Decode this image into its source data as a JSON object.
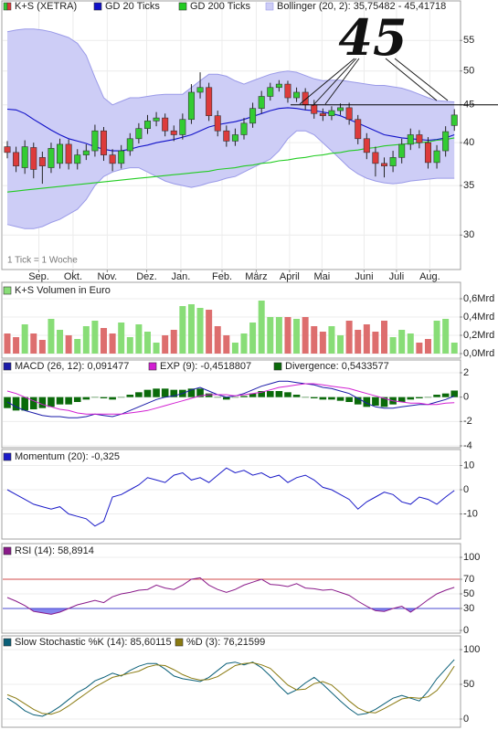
{
  "chart_data": [
    {
      "type": "candlestick",
      "name": "K+S (XETRA)",
      "up_color": "#33cc33",
      "down_color": "#dd3b3b",
      "log": true,
      "ylim": [
        27.1,
        59.6
      ],
      "yticks": [
        30,
        35,
        40,
        45,
        50,
        55
      ],
      "grid": true,
      "xlim": [
        -0.52,
        51.6
      ],
      "xticks": [
        {
          "value": 3.6,
          "label": "Sep."
        },
        {
          "value": 7.5,
          "label": "Okt."
        },
        {
          "value": 11.4,
          "label": "Nov."
        },
        {
          "value": 15.9,
          "label": "Dez."
        },
        {
          "value": 19.8,
          "label": "Jan."
        },
        {
          "value": 24.5,
          "label": "Feb."
        },
        {
          "value": 28.4,
          "label": "März"
        },
        {
          "value": 32.2,
          "label": "April"
        },
        {
          "value": 35.9,
          "label": "Mai"
        },
        {
          "value": 40.7,
          "label": "Juni"
        },
        {
          "value": 44.4,
          "label": "Juli"
        },
        {
          "value": 48.2,
          "label": "Aug."
        }
      ],
      "open": [
        39.5,
        38.8,
        37.0,
        39.4,
        38.2,
        37.0,
        37.5,
        39.8,
        37.5,
        38.5,
        39.0,
        41.5,
        38.5,
        37.5,
        39.0,
        40.5,
        41.8,
        42.8,
        43.2,
        41.5,
        41.0,
        43.0,
        46.8,
        47.5,
        43.5,
        41.5,
        40.2,
        41.0,
        42.5,
        44.5,
        46.2,
        47.5,
        48.0,
        46.0,
        46.8,
        45.0,
        43.8,
        43.5,
        44.2,
        44.6,
        43.0,
        40.5,
        38.8,
        37.5,
        37.2,
        38.2,
        39.8,
        41.0,
        40.0,
        37.6,
        39.0,
        42.2
      ],
      "high": [
        40.2,
        39.5,
        40.3,
        40.0,
        38.9,
        40.0,
        40.5,
        40.4,
        39.2,
        39.8,
        42.3,
        42.0,
        39.2,
        39.7,
        41.2,
        42.5,
        43.6,
        44.0,
        43.8,
        42.2,
        43.8,
        48.0,
        49.8,
        48.2,
        44.2,
        42.2,
        41.8,
        43.2,
        45.3,
        47.0,
        48.2,
        48.6,
        48.5,
        47.5,
        47.4,
        45.7,
        44.5,
        44.8,
        45.2,
        45.3,
        43.6,
        41.2,
        39.5,
        38.2,
        39.0,
        40.5,
        41.8,
        41.6,
        40.7,
        39.7,
        42.1,
        44.4
      ],
      "low": [
        38.1,
        36.5,
        36.3,
        35.8,
        35.2,
        36.4,
        36.9,
        36.8,
        36.8,
        37.9,
        38.3,
        37.8,
        36.6,
        36.9,
        38.4,
        39.9,
        41.1,
        42.1,
        40.8,
        40.2,
        40.4,
        42.4,
        45.9,
        42.8,
        40.8,
        39.5,
        39.6,
        40.4,
        41.9,
        43.8,
        45.6,
        46.9,
        45.3,
        45.4,
        44.3,
        43.1,
        42.8,
        42.9,
        43.6,
        42.3,
        39.8,
        38.0,
        36.0,
        35.9,
        36.5,
        37.5,
        39.1,
        39.3,
        36.9,
        36.9,
        38.3,
        41.5
      ],
      "close": [
        38.8,
        37.2,
        39.5,
        36.8,
        37.2,
        39.3,
        39.8,
        37.5,
        38.5,
        39.0,
        41.5,
        38.5,
        37.5,
        39.0,
        40.5,
        41.8,
        42.8,
        43.2,
        41.5,
        41.0,
        43.0,
        46.8,
        47.5,
        43.5,
        41.5,
        40.2,
        41.0,
        42.5,
        44.5,
        46.2,
        47.5,
        48.0,
        46.0,
        46.8,
        45.0,
        43.8,
        43.5,
        44.2,
        44.6,
        43.0,
        40.5,
        38.8,
        37.5,
        37.2,
        38.2,
        39.8,
        41.0,
        40.0,
        37.6,
        39.0,
        41.4,
        43.6
      ],
      "series": [
        {
          "name": "GD 20 Ticks",
          "color": "#1010c8",
          "values": [
            44.4,
            44.3,
            43.8,
            43,
            42.3,
            41.6,
            41,
            40.5,
            40.2,
            39.9,
            39.5,
            39.2,
            39,
            39,
            39.2,
            39.5,
            39.7,
            40,
            40.2,
            40.4,
            40.7,
            41,
            41.5,
            42,
            42.3,
            42.5,
            42.7,
            43,
            43.4,
            43.8,
            44.2,
            44.5,
            44.6,
            44.5,
            44.3,
            44.2,
            44,
            43.8,
            43.5,
            43,
            42.5,
            42,
            41.5,
            41,
            40.8,
            40.6,
            40.5,
            40.4,
            40.3,
            40.4,
            40.6,
            41
          ]
        },
        {
          "name": "GD 200 Ticks",
          "color": "#22cc22",
          "values": [
            34.3,
            34.4,
            34.5,
            34.6,
            34.7,
            34.8,
            34.9,
            35.0,
            35.1,
            35.2,
            35.3,
            35.4,
            35.5,
            35.6,
            35.7,
            35.8,
            35.9,
            36.0,
            36.1,
            36.2,
            36.3,
            36.4,
            36.5,
            36.6,
            36.8,
            36.9,
            37.0,
            37.2,
            37.3,
            37.5,
            37.6,
            37.8,
            37.9,
            38.1,
            38.2,
            38.4,
            38.5,
            38.7,
            38.8,
            39.0,
            39.1,
            39.3,
            39.4,
            39.6,
            39.7,
            39.8,
            39.9,
            40.0,
            40.1,
            40.3,
            40.4,
            40.6
          ]
        }
      ],
      "band": {
        "name": "Bollinger (20, 2): 35,75482 - 45,41718",
        "color": "#9a9ae8",
        "fill": "#cdcdf6",
        "upper": [
          56.5,
          56.8,
          57,
          57,
          56.8,
          56.5,
          56,
          55.5,
          54.5,
          52.5,
          49,
          46,
          45,
          45.5,
          46,
          46,
          46.2,
          46.4,
          46.5,
          46.5,
          46.5,
          47.5,
          48.5,
          49.5,
          49.5,
          49.2,
          48.5,
          48,
          48.5,
          49,
          49.5,
          49.8,
          50,
          49.8,
          49.3,
          48.8,
          48.5,
          48.6,
          48.6,
          48.4,
          48.2,
          48,
          47.8,
          47.8,
          47.6,
          47.4,
          47,
          46.5,
          46,
          45.6,
          45.5,
          45.4
        ],
        "lower": [
          31,
          30.8,
          30.6,
          30.6,
          30.8,
          31.2,
          31.5,
          32,
          32.5,
          33.5,
          35,
          36,
          36.5,
          36.8,
          37,
          37,
          36.5,
          36,
          35.5,
          35.2,
          35,
          34.8,
          35,
          35.3,
          35.5,
          35.8,
          36,
          36.5,
          37,
          37.5,
          38,
          39,
          40.5,
          41.5,
          41.5,
          41,
          40,
          39,
          38,
          37,
          36.3,
          35.8,
          35.5,
          35.3,
          35.2,
          35.3,
          35.5,
          35.6,
          35.7,
          35.8,
          35.8,
          35.8
        ]
      },
      "hline": 45,
      "annotation": "45",
      "note": "1 Tick = 1 Woche"
    },
    {
      "type": "volume",
      "ylim": [
        0,
        0.62
      ],
      "grid": true,
      "yticks": [
        {
          "value": 0.6,
          "label": "0,6Mrd"
        },
        {
          "value": 0.4,
          "label": "0,4Mrd"
        },
        {
          "value": 0.2,
          "label": "0,2Mrd"
        },
        {
          "value": 0.0,
          "label": "0,0Mrd"
        }
      ],
      "series": [
        {
          "name": "K+S Volumen in Euro",
          "color": "#88dd77",
          "down_color": "#dd6e6e",
          "values": [
            0.22,
            0.18,
            0.32,
            0.22,
            0.15,
            0.38,
            0.26,
            0.2,
            0.16,
            0.3,
            0.36,
            0.28,
            0.22,
            0.34,
            0.18,
            0.32,
            0.24,
            0.12,
            0.2,
            0.26,
            0.52,
            0.54,
            0.5,
            0.48,
            0.3,
            0.2,
            0.12,
            0.22,
            0.34,
            0.58,
            0.4,
            0.4,
            0.4,
            0.38,
            0.4,
            0.3,
            0.24,
            0.3,
            0.2,
            0.36,
            0.26,
            0.32,
            0.24,
            0.36,
            0.18,
            0.26,
            0.22,
            0.12,
            0.16,
            0.36,
            0.38,
            0.12
          ]
        }
      ]
    },
    {
      "type": "line",
      "ylim": [
        -4,
        2.3
      ],
      "yticks": [
        2,
        0,
        -2,
        -4
      ],
      "grid": true,
      "series": [
        {
          "name": "MACD (26, 12): 0,091477",
          "color": "#1a1aa8",
          "values": [
            -0.4,
            -0.8,
            -1.1,
            -1.3,
            -1.5,
            -1.6,
            -1.6,
            -1.7,
            -1.7,
            -1.6,
            -1.4,
            -1.5,
            -1.6,
            -1.4,
            -1.1,
            -0.8,
            -0.5,
            -0.2,
            0.0,
            0.1,
            0.3,
            0.6,
            0.8,
            0.5,
            0.2,
            0.0,
            0.1,
            0.3,
            0.6,
            0.9,
            1.1,
            1.3,
            1.3,
            1.2,
            1.1,
            1.0,
            0.8,
            0.7,
            0.5,
            0.3,
            -0.1,
            -0.5,
            -0.8,
            -0.9,
            -0.9,
            -0.8,
            -0.7,
            -0.6,
            -0.6,
            -0.4,
            -0.2,
            0.09
          ]
        },
        {
          "name": "EXP (9): -0,4518807",
          "color": "#d21fd2",
          "values": [
            0.5,
            0.3,
            0.0,
            -0.3,
            -0.6,
            -0.8,
            -1.0,
            -1.1,
            -1.3,
            -1.4,
            -1.4,
            -1.4,
            -1.4,
            -1.4,
            -1.3,
            -1.2,
            -1.1,
            -0.9,
            -0.7,
            -0.5,
            -0.3,
            -0.1,
            0.1,
            0.2,
            0.2,
            0.2,
            0.1,
            0.2,
            0.3,
            0.4,
            0.6,
            0.8,
            0.9,
            1.0,
            1.1,
            1.1,
            1.0,
            0.9,
            0.8,
            0.7,
            0.5,
            0.3,
            0.1,
            -0.1,
            -0.3,
            -0.4,
            -0.5,
            -0.5,
            -0.6,
            -0.6,
            -0.5,
            -0.45
          ]
        },
        {
          "name": "Divergence: 0,5433577",
          "color": "#0a6a0a",
          "kind": "bar",
          "values": [
            -0.9,
            -1.1,
            -1.1,
            -1.0,
            -0.9,
            -0.8,
            -0.6,
            -0.6,
            -0.4,
            -0.2,
            0,
            -0.1,
            -0.2,
            0,
            0.2,
            0.4,
            0.6,
            0.7,
            0.7,
            0.6,
            0.6,
            0.7,
            0.7,
            0.3,
            0,
            -0.2,
            0,
            0.1,
            0.3,
            0.5,
            0.5,
            0.5,
            0.4,
            0.2,
            0,
            -0.1,
            -0.2,
            -0.2,
            -0.3,
            -0.4,
            -0.6,
            -0.8,
            -0.7,
            -0.8,
            -0.6,
            -0.4,
            -0.2,
            -0.1,
            0,
            0.2,
            0.3,
            0.54
          ]
        }
      ]
    },
    {
      "type": "line",
      "ylim": [
        -19.6,
        11.7
      ],
      "yticks": [
        10,
        0,
        -10
      ],
      "grid": true,
      "series": [
        {
          "name": "Momentum (20): -0,325",
          "color": "#1a1ac8",
          "values": [
            0,
            -2,
            -4,
            -6,
            -7,
            -8,
            -7,
            -10,
            -11,
            -12,
            -15,
            -13,
            -3,
            -2,
            0,
            2,
            5,
            4,
            3,
            6,
            7,
            4,
            5,
            3,
            6,
            9,
            7,
            8,
            6,
            7,
            5,
            6,
            3,
            5,
            6,
            4,
            1,
            0,
            -2,
            -4,
            -8,
            -5,
            -3,
            -1,
            -2,
            -5,
            -6,
            -3,
            -4,
            -6,
            -3,
            -0.325
          ]
        }
      ]
    },
    {
      "type": "line",
      "ylim": [
        0,
        100
      ],
      "yticks": [
        100,
        70,
        50,
        30,
        0
      ],
      "grid": true,
      "levels": [
        {
          "value": 70,
          "color": "#d04848"
        },
        {
          "value": 30,
          "color": "#4848d0",
          "fill": "#8585ee"
        }
      ],
      "series": [
        {
          "name": "RSI (14): 58,8914",
          "color": "#8a1a8a",
          "values": [
            45,
            40,
            34,
            26,
            24,
            22,
            25,
            30,
            35,
            38,
            41,
            38,
            46,
            50,
            52,
            55,
            56,
            62,
            58,
            56,
            62,
            70,
            72,
            62,
            56,
            52,
            56,
            62,
            66,
            70,
            63,
            62,
            60,
            64,
            58,
            57,
            55,
            56,
            52,
            48,
            40,
            33,
            27,
            26,
            30,
            33,
            25,
            33,
            42,
            50,
            55,
            58.89
          ]
        }
      ]
    },
    {
      "type": "line",
      "ylim": [
        0,
        100
      ],
      "yticks": [
        100,
        50,
        0
      ],
      "grid": true,
      "series": [
        {
          "name": "Slow Stochastic %K (14): 85,60115",
          "color": "#0a5f78",
          "values": [
            30,
            22,
            12,
            6,
            4,
            10,
            18,
            28,
            38,
            45,
            55,
            60,
            66,
            62,
            70,
            76,
            80,
            80,
            72,
            62,
            58,
            56,
            54,
            60,
            70,
            80,
            82,
            78,
            82,
            74,
            62,
            48,
            36,
            42,
            52,
            60,
            50,
            38,
            26,
            15,
            6,
            8,
            14,
            22,
            30,
            34,
            30,
            26,
            40,
            58,
            72,
            85.6
          ]
        },
        {
          "name": "%D (3): 76,21599",
          "color": "#8a7a10",
          "values": [
            35,
            30,
            22,
            14,
            8,
            7,
            11,
            19,
            28,
            37,
            46,
            53,
            60,
            63,
            66,
            69,
            75,
            78,
            77,
            71,
            64,
            59,
            56,
            57,
            61,
            69,
            77,
            80,
            81,
            78,
            73,
            61,
            49,
            42,
            43,
            51,
            54,
            49,
            38,
            26,
            16,
            10,
            9,
            15,
            22,
            29,
            31,
            30,
            32,
            41,
            57,
            76.2
          ]
        }
      ]
    }
  ]
}
